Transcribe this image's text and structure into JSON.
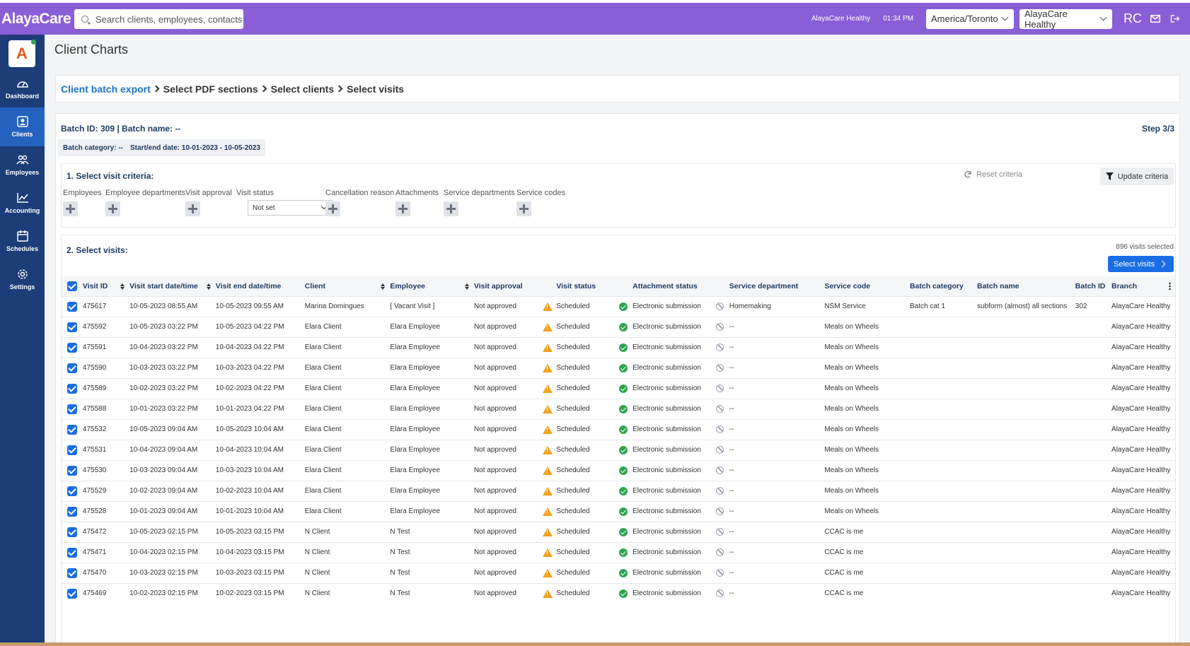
{
  "topbar": {
    "logo": "AlayaCare",
    "search_placeholder": "Search clients, employees, contacts",
    "org_label": "AlayaCare Healthy",
    "time": "01:34 PM",
    "timezone": "America/Toronto",
    "org_select": "AlayaCare Healthy",
    "initials": "RC"
  },
  "sidebar": {
    "app_letter": "A",
    "items": [
      {
        "label": "Dashboard",
        "icon": "gauge-icon"
      },
      {
        "label": "Clients",
        "icon": "client-icon"
      },
      {
        "label": "Employees",
        "icon": "employees-icon"
      },
      {
        "label": "Accounting",
        "icon": "chart-icon"
      },
      {
        "label": "Schedules",
        "icon": "calendar-icon"
      },
      {
        "label": "Settings",
        "icon": "gear-icon"
      }
    ]
  },
  "page": {
    "title": "Client Charts"
  },
  "breadcrumb": [
    "Client batch export",
    "Select PDF sections",
    "Select clients",
    "Select visits"
  ],
  "batch": {
    "id_line": "Batch ID: 309 | Batch name: --",
    "step": "Step 3/3",
    "category": "Batch category: --",
    "dates": "Start/end date: 10-01-2023 - 10-05-2023"
  },
  "criteria": {
    "title": "1. Select visit criteria:",
    "reset": "Reset criteria",
    "update": "Update criteria",
    "fields": [
      "Employees",
      "Employee departments",
      "Visit approval",
      "Visit status",
      "Cancellation reason",
      "Attachments",
      "Service departments",
      "Service codes"
    ],
    "visit_status_value": "Not set"
  },
  "visits": {
    "title": "2. Select visits:",
    "selected_count": "896 visits selected",
    "select_button": "Select visits",
    "columns": [
      "Visit ID",
      "Visit start date/time",
      "Visit end date/time",
      "Client",
      "Employee",
      "Visit approval",
      "Visit status",
      "Attachment status",
      "Service department",
      "Service code",
      "Batch category",
      "Batch name",
      "Batch ID",
      "Branch"
    ],
    "rows": [
      [
        "475617",
        "10-05-2023 08:55 AM",
        "10-05-2023 09:55 AM",
        "Marina Domingues",
        "[ Vacant Visit ]",
        "Not approved",
        "Scheduled",
        "Electronic submission",
        "Homemaking",
        "NSM Service",
        "Batch cat 1",
        "subform (almost) all sections",
        "302",
        "AlayaCare Healthy"
      ],
      [
        "475592",
        "10-05-2023 03:22 PM",
        "10-05-2023 04:22 PM",
        "Elara Client",
        "Elara Employee",
        "Not approved",
        "Scheduled",
        "Electronic submission",
        "--",
        "Meals on Wheels",
        "",
        "",
        "",
        "AlayaCare Healthy"
      ],
      [
        "475591",
        "10-04-2023 03:22 PM",
        "10-04-2023 04:22 PM",
        "Elara Client",
        "Elara Employee",
        "Not approved",
        "Scheduled",
        "Electronic submission",
        "--",
        "Meals on Wheels",
        "",
        "",
        "",
        "AlayaCare Healthy"
      ],
      [
        "475590",
        "10-03-2023 03:22 PM",
        "10-03-2023 04:22 PM",
        "Elara Client",
        "Elara Employee",
        "Not approved",
        "Scheduled",
        "Electronic submission",
        "--",
        "Meals on Wheels",
        "",
        "",
        "",
        "AlayaCare Healthy"
      ],
      [
        "475589",
        "10-02-2023 03:22 PM",
        "10-02-2023 04:22 PM",
        "Elara Client",
        "Elara Employee",
        "Not approved",
        "Scheduled",
        "Electronic submission",
        "--",
        "Meals on Wheels",
        "",
        "",
        "",
        "AlayaCare Healthy"
      ],
      [
        "475588",
        "10-01-2023 03:22 PM",
        "10-01-2023 04:22 PM",
        "Elara Client",
        "Elara Employee",
        "Not approved",
        "Scheduled",
        "Electronic submission",
        "--",
        "Meals on Wheels",
        "",
        "",
        "",
        "AlayaCare Healthy"
      ],
      [
        "475532",
        "10-05-2023 09:04 AM",
        "10-05-2023 10:04 AM",
        "Elara Client",
        "Elara Employee",
        "Not approved",
        "Scheduled",
        "Electronic submission",
        "--",
        "Meals on Wheels",
        "",
        "",
        "",
        "AlayaCare Healthy"
      ],
      [
        "475531",
        "10-04-2023 09:04 AM",
        "10-04-2023 10:04 AM",
        "Elara Client",
        "Elara Employee",
        "Not approved",
        "Scheduled",
        "Electronic submission",
        "--",
        "Meals on Wheels",
        "",
        "",
        "",
        "AlayaCare Healthy"
      ],
      [
        "475530",
        "10-03-2023 09:04 AM",
        "10-03-2023 10:04 AM",
        "Elara Client",
        "Elara Employee",
        "Not approved",
        "Scheduled",
        "Electronic submission",
        "--",
        "Meals on Wheels",
        "",
        "",
        "",
        "AlayaCare Healthy"
      ],
      [
        "475529",
        "10-02-2023 09:04 AM",
        "10-02-2023 10:04 AM",
        "Elara Client",
        "Elara Employee",
        "Not approved",
        "Scheduled",
        "Electronic submission",
        "--",
        "Meals on Wheels",
        "",
        "",
        "",
        "AlayaCare Healthy"
      ],
      [
        "475528",
        "10-01-2023 09:04 AM",
        "10-01-2023 10:04 AM",
        "Elara Client",
        "Elara Employee",
        "Not approved",
        "Scheduled",
        "Electronic submission",
        "--",
        "Meals on Wheels",
        "",
        "",
        "",
        "AlayaCare Healthy"
      ],
      [
        "475472",
        "10-05-2023 02:15 PM",
        "10-05-2023 03:15 PM",
        "N Client",
        "N Test",
        "Not approved",
        "Scheduled",
        "Electronic submission",
        "--",
        "CCAC is me",
        "",
        "",
        "",
        "AlayaCare Healthy"
      ],
      [
        "475471",
        "10-04-2023 02:15 PM",
        "10-04-2023 03:15 PM",
        "N Client",
        "N Test",
        "Not approved",
        "Scheduled",
        "Electronic submission",
        "--",
        "CCAC is me",
        "",
        "",
        "",
        "AlayaCare Healthy"
      ],
      [
        "475470",
        "10-03-2023 02:15 PM",
        "10-03-2023 03:15 PM",
        "N Client",
        "N Test",
        "Not approved",
        "Scheduled",
        "Electronic submission",
        "--",
        "CCAC is me",
        "",
        "",
        "",
        "AlayaCare Healthy"
      ],
      [
        "475469",
        "10-02-2023 02:15 PM",
        "10-02-2023 03:15 PM",
        "N Client",
        "N Test",
        "Not approved",
        "Scheduled",
        "Electronic submission",
        "--",
        "CCAC is me",
        "",
        "",
        "",
        "AlayaCare Healthy"
      ]
    ]
  },
  "colors": {
    "topbar": "#8a5ed6",
    "sidebar": "#1c3d78",
    "accent": "#1a6de4",
    "warning": "#f2a21b",
    "success": "#2ea44f"
  }
}
